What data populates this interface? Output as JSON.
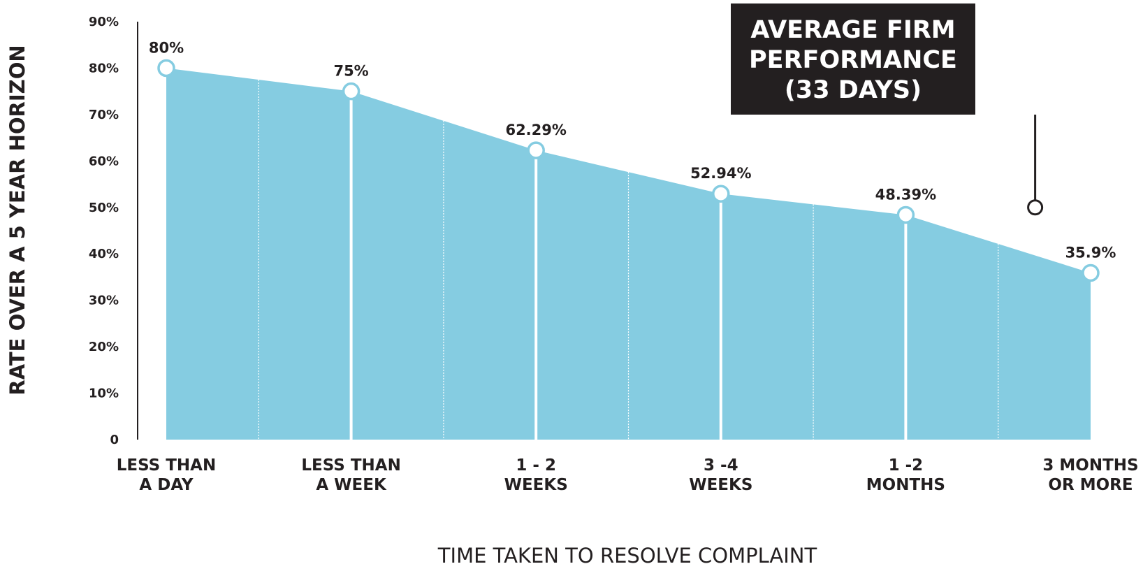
{
  "chart_data": {
    "type": "area",
    "categories": [
      "LESS THAN A DAY",
      "LESS THAN A WEEK",
      "1 - 2 WEEKS",
      "3 -4 WEEKS",
      "1 -2 MONTHS",
      "3 MONTHS OR MORE"
    ],
    "category_lines": [
      [
        "LESS THAN",
        "A DAY"
      ],
      [
        "LESS THAN",
        "A WEEK"
      ],
      [
        "1 - 2",
        "WEEKS"
      ],
      [
        "3 -4",
        "WEEKS"
      ],
      [
        "1 -2",
        "MONTHS"
      ],
      [
        "3 MONTHS",
        "OR MORE"
      ]
    ],
    "values": [
      80,
      75,
      62.29,
      52.94,
      48.39,
      35.9
    ],
    "data_labels": [
      "80%",
      "75%",
      "62.29%",
      "52.94%",
      "48.39%",
      "35.9%"
    ],
    "ylabel": "RATE OVER A 5 YEAR HORIZON",
    "xlabel": "TIME TAKEN TO RESOLVE COMPLAINT",
    "ylim": [
      0,
      90
    ],
    "yticks": [
      {
        "value": 0,
        "label": "0"
      },
      {
        "value": 10,
        "label": "10%"
      },
      {
        "value": 20,
        "label": "20%"
      },
      {
        "value": 30,
        "label": "30%"
      },
      {
        "value": 40,
        "label": "40%"
      },
      {
        "value": 50,
        "label": "50%"
      },
      {
        "value": 60,
        "label": "60%"
      },
      {
        "value": 70,
        "label": "70%"
      },
      {
        "value": 80,
        "label": "80%"
      },
      {
        "value": 90,
        "label": "90%"
      }
    ],
    "grid": false,
    "fill_color": "#85cce1",
    "marker_stroke": "#85cce1",
    "annotation": {
      "lines": [
        "AVERAGE FIRM",
        "PERFORMANCE",
        "(33 DAYS)"
      ],
      "text": "AVERAGE FIRM PERFORMANCE (33 DAYS)",
      "x_position": 4.7,
      "value": 50,
      "box_color": "#231f20",
      "text_color": "#ffffff"
    }
  }
}
